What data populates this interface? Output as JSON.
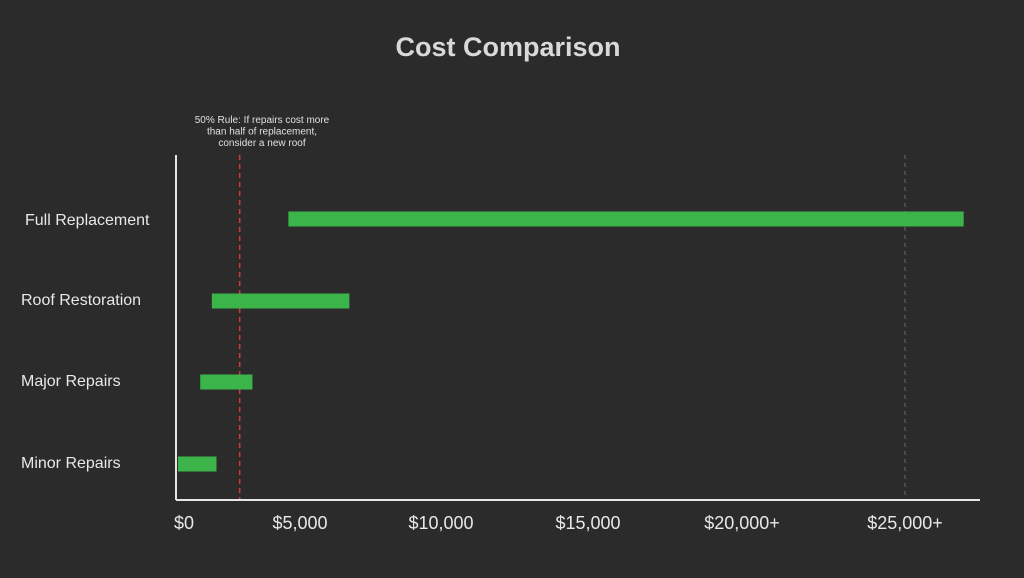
{
  "chart_data": {
    "type": "bar",
    "orientation": "horizontal",
    "title": "Cost Comparison",
    "xlabel": "",
    "ylabel": "",
    "xlim": [
      0,
      27000
    ],
    "ticks": [
      {
        "value": 0,
        "label": "$0"
      },
      {
        "value": 5000,
        "label": "$5,000"
      },
      {
        "value": 10000,
        "label": "$10,000"
      },
      {
        "value": 15000,
        "label": "$15,000"
      },
      {
        "value": 20000,
        "label": "$20,000+"
      },
      {
        "value": 25000,
        "label": "$25,000+"
      }
    ],
    "categories": [
      "Full Replacement",
      "Roof Restoration",
      "Major Repairs",
      "Minor Repairs"
    ],
    "ranges": [
      {
        "start": 4500,
        "end": 26800
      },
      {
        "start": 1200,
        "end": 6750
      },
      {
        "start": 700,
        "end": 2950
      },
      {
        "start": 0,
        "end": 1400
      }
    ],
    "bar_color": "#3bb54a",
    "reference_line": {
      "value": 2400,
      "color": "#cc3b3b",
      "label_lines": [
        "50% Rule:  If repairs cost more",
        "than half of replacement,",
        "consider a new roof"
      ]
    },
    "secondary_line": {
      "value": 25000,
      "color": "#6a6a6a"
    },
    "grid": false
  }
}
